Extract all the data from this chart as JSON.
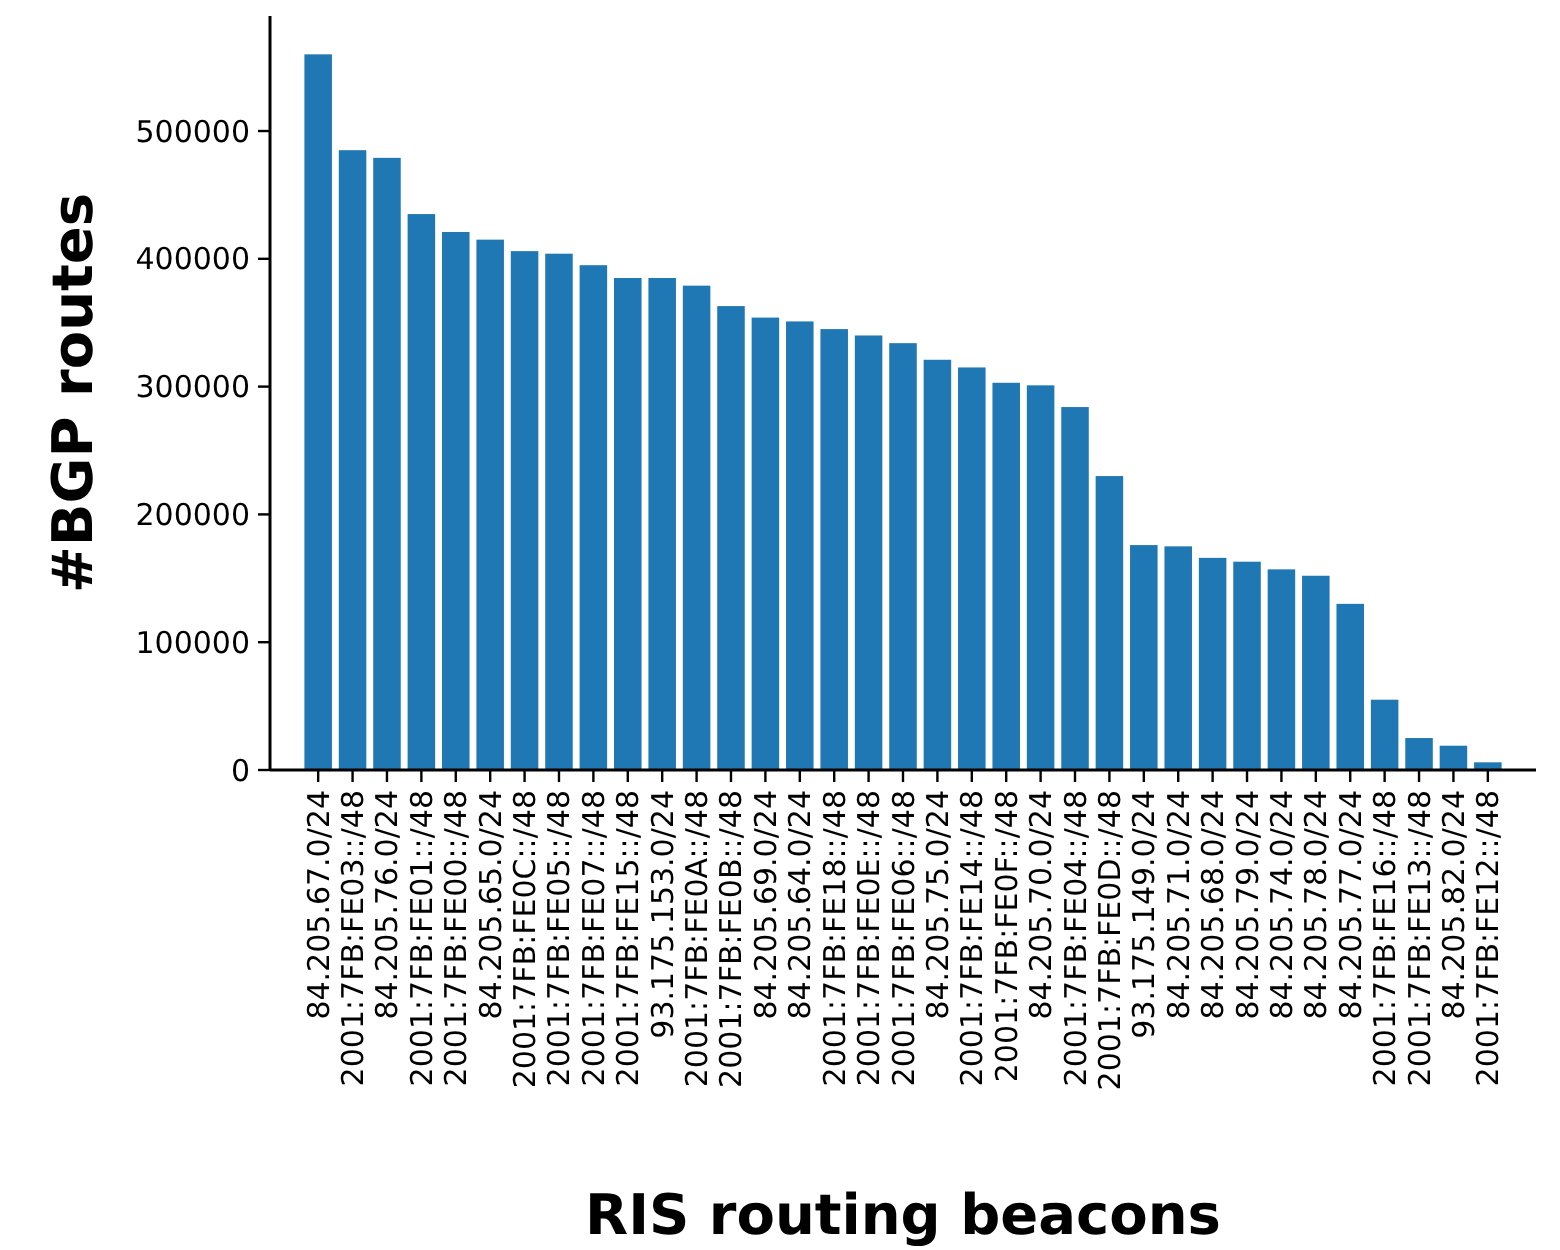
{
  "chart_data": {
    "type": "bar",
    "xlabel": "RIS routing beacons",
    "ylabel": "#BGP routes",
    "categories": [
      "84.205.67.0/24",
      "2001:7FB:FE03::/48",
      "84.205.76.0/24",
      "2001:7FB:FE01::/48",
      "2001:7FB:FE00::/48",
      "84.205.65.0/24",
      "2001:7FB:FE0C::/48",
      "2001:7FB:FE05::/48",
      "2001:7FB:FE07::/48",
      "2001:7FB:FE15::/48",
      "93.175.153.0/24",
      "2001:7FB:FE0A::/48",
      "2001:7FB:FE0B::/48",
      "84.205.69.0/24",
      "84.205.64.0/24",
      "2001:7FB:FE18::/48",
      "2001:7FB:FE0E::/48",
      "2001:7FB:FE06::/48",
      "84.205.75.0/24",
      "2001:7FB:FE14::/48",
      "2001:7FB:FE0F::/48",
      "84.205.70.0/24",
      "2001:7FB:FE04::/48",
      "2001:7FB:FE0D::/48",
      "93.175.149.0/24",
      "84.205.71.0/24",
      "84.205.68.0/24",
      "84.205.79.0/24",
      "84.205.74.0/24",
      "84.205.78.0/24",
      "84.205.77.0/24",
      "2001:7FB:FE16::/48",
      "2001:7FB:FE13::/48",
      "84.205.82.0/24",
      "2001:7FB:FE12::/48"
    ],
    "values": [
      560000,
      485000,
      479000,
      435000,
      421000,
      415000,
      406000,
      404000,
      395000,
      385000,
      385000,
      379000,
      363000,
      354000,
      351000,
      345000,
      340000,
      334000,
      321000,
      315000,
      303000,
      301000,
      284000,
      230000,
      176000,
      175000,
      166000,
      163000,
      157000,
      152000,
      130000,
      55000,
      25000,
      19000,
      6000
    ],
    "color": "#1f77b4",
    "ylim": [
      0,
      590000
    ],
    "yticks": [
      0,
      100000,
      200000,
      300000,
      400000,
      500000
    ]
  }
}
